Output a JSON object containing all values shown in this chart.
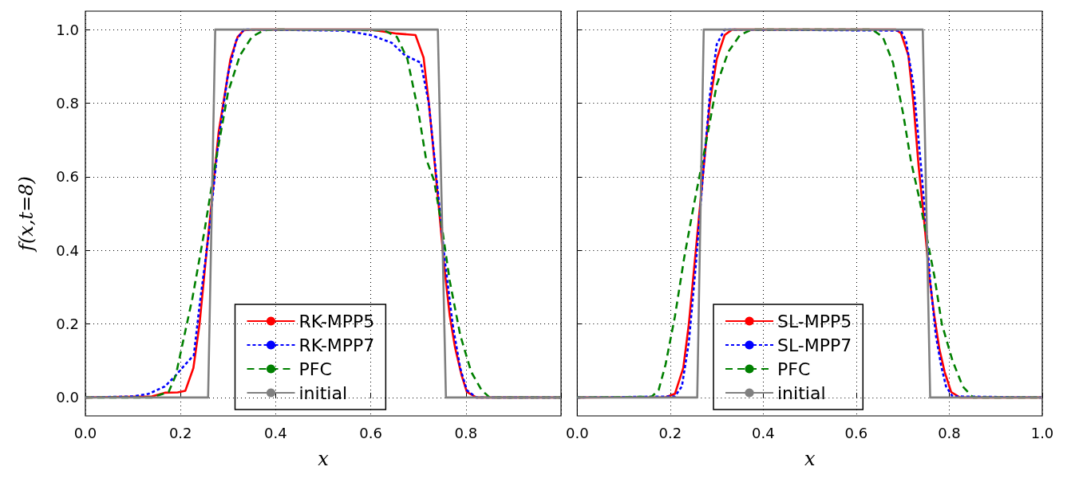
{
  "chart_data": [
    {
      "type": "line",
      "xlabel": "x",
      "ylabel": "f(x,t=8)",
      "xlim": [
        0,
        1
      ],
      "ylim": [
        -0.05,
        1.05
      ],
      "xticks": [
        {
          "value": 0,
          "label": "0.0"
        },
        {
          "value": 0.2,
          "label": "0.2"
        },
        {
          "value": 0.4,
          "label": "0.4"
        },
        {
          "value": 0.6,
          "label": "0.6"
        },
        {
          "value": 0.8,
          "label": "0.8"
        },
        {
          "value": 1,
          "label": null
        }
      ],
      "yticks": [
        {
          "value": 0,
          "label": "0.0"
        },
        {
          "value": 0.2,
          "label": "0.2"
        },
        {
          "value": 0.4,
          "label": "0.4"
        },
        {
          "value": 0.6,
          "label": "0.6"
        },
        {
          "value": 0.8,
          "label": "0.8"
        },
        {
          "value": 1,
          "label": "1.0"
        }
      ],
      "grid": true,
      "legend": "bottom",
      "marker": "none",
      "series": [
        {
          "name": "RK-MPP5",
          "color": "#ff0000",
          "line_style": "solid",
          "x": [
            0,
            0.14,
            0.167,
            0.194,
            0.21,
            0.227,
            0.24,
            0.255,
            0.267,
            0.28,
            0.29,
            0.305,
            0.32,
            0.333,
            0.35,
            0.6,
            0.655,
            0.694,
            0.711,
            0.722,
            0.733,
            0.744,
            0.755,
            0.766,
            0.777,
            0.791,
            0.802,
            0.822,
            1
          ],
          "values": [
            0,
            0.003,
            0.013,
            0.014,
            0.018,
            0.08,
            0.2,
            0.4,
            0.55,
            0.72,
            0.8,
            0.92,
            0.98,
            0.998,
            1,
            1,
            0.989,
            0.985,
            0.924,
            0.8,
            0.655,
            0.504,
            0.35,
            0.223,
            0.137,
            0.06,
            0.015,
            0,
            0
          ]
        },
        {
          "name": "RK-MPP7",
          "color": "#0000ff",
          "line_style": "dotted",
          "x": [
            0,
            0.1,
            0.133,
            0.167,
            0.19,
            0.21,
            0.228,
            0.24,
            0.26,
            0.28,
            0.3,
            0.317,
            0.333,
            0.544,
            0.6,
            0.644,
            0.672,
            0.705,
            0.722,
            0.738,
            0.755,
            0.772,
            0.788,
            0.802,
            0.822,
            1
          ],
          "values": [
            0,
            0.003,
            0.01,
            0.03,
            0.06,
            0.09,
            0.115,
            0.25,
            0.45,
            0.7,
            0.88,
            0.97,
            1,
            0.997,
            0.985,
            0.964,
            0.93,
            0.91,
            0.8,
            0.6,
            0.38,
            0.2,
            0.08,
            0.02,
            0,
            0
          ]
        },
        {
          "name": "PFC",
          "color": "#008000",
          "line_style": "dashed",
          "x": [
            0,
            0.14,
            0.175,
            0.19,
            0.205,
            0.225,
            0.25,
            0.275,
            0.3,
            0.325,
            0.35,
            0.375,
            0.4,
            0.628,
            0.655,
            0.677,
            0.7,
            0.716,
            0.733,
            0.75,
            0.766,
            0.788,
            0.811,
            0.833,
            0.85,
            1
          ],
          "values": [
            0,
            0,
            0.015,
            0.06,
            0.15,
            0.27,
            0.45,
            0.65,
            0.83,
            0.93,
            0.98,
            0.998,
            1,
            0.998,
            0.98,
            0.92,
            0.777,
            0.65,
            0.59,
            0.46,
            0.317,
            0.17,
            0.07,
            0.02,
            0,
            0
          ]
        },
        {
          "name": "initial",
          "color": "#808080",
          "line_style": "solid",
          "x": [
            0,
            0.258,
            0.273,
            0.741,
            0.758,
            1
          ],
          "values": [
            0,
            0,
            1,
            1,
            0,
            0
          ]
        }
      ]
    },
    {
      "type": "line",
      "xlabel": "x",
      "xlim": [
        0,
        1
      ],
      "ylim": [
        -0.05,
        1.05
      ],
      "tick_labels": "x",
      "xticks": [
        {
          "value": 0,
          "label": "0.0"
        },
        {
          "value": 0.2,
          "label": "0.2"
        },
        {
          "value": 0.4,
          "label": "0.4"
        },
        {
          "value": 0.6,
          "label": "0.6"
        },
        {
          "value": 0.8,
          "label": "0.8"
        },
        {
          "value": 1,
          "label": "1.0"
        }
      ],
      "yticks": [
        0,
        0.2,
        0.4,
        0.6,
        0.8,
        1
      ],
      "grid": true,
      "legend": "bottom",
      "marker": "none",
      "series": [
        {
          "name": "SL-MPP5",
          "color": "#ff0000",
          "line_style": "solid",
          "x": [
            0,
            0.19,
            0.21,
            0.228,
            0.24,
            0.255,
            0.27,
            0.285,
            0.3,
            0.317,
            0.333,
            0.685,
            0.696,
            0.712,
            0.723,
            0.734,
            0.746,
            0.757,
            0.768,
            0.779,
            0.79,
            0.804,
            0.823,
            1
          ],
          "values": [
            0,
            0.001,
            0.01,
            0.08,
            0.2,
            0.4,
            0.6,
            0.8,
            0.92,
            0.985,
            1,
            1,
            0.99,
            0.93,
            0.8,
            0.63,
            0.48,
            0.33,
            0.22,
            0.13,
            0.07,
            0.015,
            0,
            0
          ]
        },
        {
          "name": "SL-MPP7",
          "color": "#0000ff",
          "line_style": "dotted",
          "x": [
            0,
            0.21,
            0.225,
            0.24,
            0.255,
            0.27,
            0.285,
            0.3,
            0.317,
            0.696,
            0.707,
            0.723,
            0.737,
            0.748,
            0.759,
            0.771,
            0.782,
            0.793,
            0.807,
            1
          ],
          "values": [
            0,
            0.003,
            0.03,
            0.15,
            0.36,
            0.6,
            0.82,
            0.96,
            1,
            0.997,
            0.97,
            0.85,
            0.66,
            0.5,
            0.317,
            0.17,
            0.09,
            0.03,
            0.003,
            0
          ]
        },
        {
          "name": "PFC",
          "color": "#008000",
          "line_style": "dashed",
          "x": [
            0,
            0.16,
            0.175,
            0.19,
            0.21,
            0.23,
            0.25,
            0.275,
            0.3,
            0.325,
            0.35,
            0.375,
            0.634,
            0.657,
            0.679,
            0.701,
            0.718,
            0.734,
            0.751,
            0.768,
            0.784,
            0.807,
            0.829,
            0.851,
            1
          ],
          "values": [
            0,
            0.002,
            0.02,
            0.09,
            0.22,
            0.38,
            0.518,
            0.68,
            0.85,
            0.94,
            0.985,
            1,
            1,
            0.98,
            0.91,
            0.77,
            0.64,
            0.55,
            0.44,
            0.33,
            0.2,
            0.1,
            0.03,
            0,
            0
          ]
        },
        {
          "name": "initial",
          "color": "#808080",
          "line_style": "solid",
          "x": [
            0,
            0.258,
            0.272,
            0.743,
            0.759,
            1
          ],
          "values": [
            0,
            0,
            1,
            1,
            0,
            0
          ]
        }
      ]
    }
  ]
}
